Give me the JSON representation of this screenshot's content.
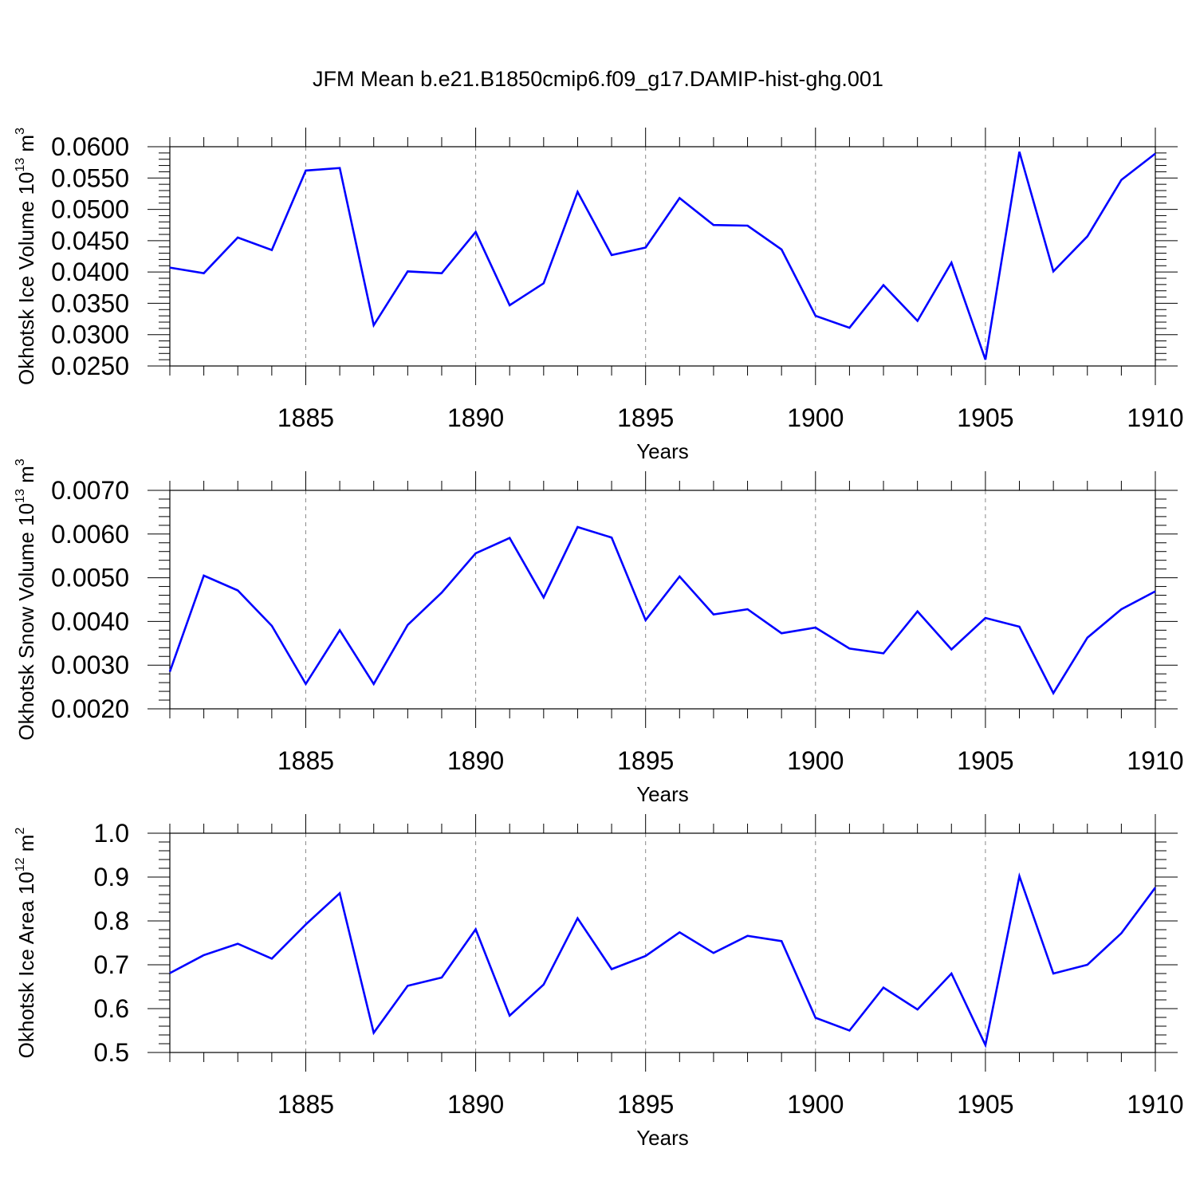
{
  "title": "JFM Mean b.e21.B1850cmip6.f09_g17.DAMIP-hist-ghg.001",
  "colors": {
    "series": "#0000ff",
    "grid": "#8a8a8a",
    "axis": "#000000"
  },
  "chart_data": [
    {
      "type": "line",
      "ylabel": {
        "text": "Okhotsk Ice Volume 10",
        "sup_exp": "13",
        "unit": " m",
        "sup_unit": "3"
      },
      "xlabel": "Years",
      "xlim": [
        1881,
        1910
      ],
      "ylim": [
        0.025,
        0.06
      ],
      "yticks": [
        0.025,
        0.03,
        0.035,
        0.04,
        0.045,
        0.05,
        0.055,
        0.06
      ],
      "yticklabels": [
        "0.0250",
        "0.0300",
        "0.0350",
        "0.0400",
        "0.0450",
        "0.0500",
        "0.0550",
        "0.0600"
      ],
      "xticks": [
        1885,
        1890,
        1895,
        1900,
        1905,
        1910
      ],
      "xticklabels": [
        "1885",
        "1890",
        "1895",
        "1900",
        "1905",
        "1910"
      ],
      "grid": "vertical-dashed",
      "x": [
        1881,
        1882,
        1883,
        1884,
        1885,
        1886,
        1887,
        1888,
        1889,
        1890,
        1891,
        1892,
        1893,
        1894,
        1895,
        1896,
        1897,
        1898,
        1899,
        1900,
        1901,
        1902,
        1903,
        1904,
        1905,
        1906,
        1907,
        1908,
        1909,
        1910
      ],
      "values": [
        0.0407,
        0.0398,
        0.0455,
        0.0435,
        0.0562,
        0.0566,
        0.0315,
        0.0401,
        0.0398,
        0.0464,
        0.0347,
        0.0382,
        0.0528,
        0.0427,
        0.0439,
        0.0518,
        0.0475,
        0.0474,
        0.0436,
        0.033,
        0.0311,
        0.0379,
        0.0322,
        0.0415,
        0.026,
        0.0592,
        0.0401,
        0.0457,
        0.0547,
        0.0589
      ]
    },
    {
      "type": "line",
      "ylabel": {
        "text": "Okhotsk Snow Volume 10",
        "sup_exp": "13",
        "unit": " m",
        "sup_unit": "3"
      },
      "xlabel": "Years",
      "xlim": [
        1881,
        1910
      ],
      "ylim": [
        0.002,
        0.007
      ],
      "yticks": [
        0.002,
        0.003,
        0.004,
        0.005,
        0.006,
        0.007
      ],
      "yticklabels": [
        "0.0020",
        "0.0030",
        "0.0040",
        "0.0050",
        "0.0060",
        "0.0070"
      ],
      "xticks": [
        1885,
        1890,
        1895,
        1900,
        1905,
        1910
      ],
      "xticklabels": [
        "1885",
        "1890",
        "1895",
        "1900",
        "1905",
        "1910"
      ],
      "grid": "vertical-dashed",
      "x": [
        1881,
        1882,
        1883,
        1884,
        1885,
        1886,
        1887,
        1888,
        1889,
        1890,
        1891,
        1892,
        1893,
        1894,
        1895,
        1896,
        1897,
        1898,
        1899,
        1900,
        1901,
        1902,
        1903,
        1904,
        1905,
        1906,
        1907,
        1908,
        1909,
        1910
      ],
      "values": [
        0.00285,
        0.00505,
        0.00471,
        0.0039,
        0.00257,
        0.0038,
        0.00257,
        0.00392,
        0.00466,
        0.00556,
        0.00591,
        0.00455,
        0.00616,
        0.00592,
        0.00403,
        0.00503,
        0.00416,
        0.00428,
        0.00373,
        0.00386,
        0.00338,
        0.00327,
        0.00423,
        0.00336,
        0.00408,
        0.00388,
        0.00236,
        0.00363,
        0.00428,
        0.00469
      ]
    },
    {
      "type": "line",
      "ylabel": {
        "text": "Okhotsk Ice Area 10",
        "sup_exp": "12",
        "unit": " m",
        "sup_unit": "2"
      },
      "xlabel": "Years",
      "xlim": [
        1881,
        1910
      ],
      "ylim": [
        0.5,
        1.0
      ],
      "yticks": [
        0.5,
        0.6,
        0.7,
        0.8,
        0.9,
        1.0
      ],
      "yticklabels": [
        "0.5",
        "0.6",
        "0.7",
        "0.8",
        "0.9",
        "1.0"
      ],
      "xticks": [
        1885,
        1890,
        1895,
        1900,
        1905,
        1910
      ],
      "xticklabels": [
        "1885",
        "1890",
        "1895",
        "1900",
        "1905",
        "1910"
      ],
      "grid": "vertical-dashed",
      "x": [
        1881,
        1882,
        1883,
        1884,
        1885,
        1886,
        1887,
        1888,
        1889,
        1890,
        1891,
        1892,
        1893,
        1894,
        1895,
        1896,
        1897,
        1898,
        1899,
        1900,
        1901,
        1902,
        1903,
        1904,
        1905,
        1906,
        1907,
        1908,
        1909,
        1910
      ],
      "values": [
        0.681,
        0.722,
        0.748,
        0.714,
        0.792,
        0.863,
        0.545,
        0.652,
        0.671,
        0.781,
        0.584,
        0.655,
        0.806,
        0.69,
        0.72,
        0.774,
        0.727,
        0.766,
        0.754,
        0.579,
        0.55,
        0.648,
        0.598,
        0.68,
        0.517,
        0.902,
        0.68,
        0.7,
        0.772,
        0.876
      ]
    }
  ]
}
